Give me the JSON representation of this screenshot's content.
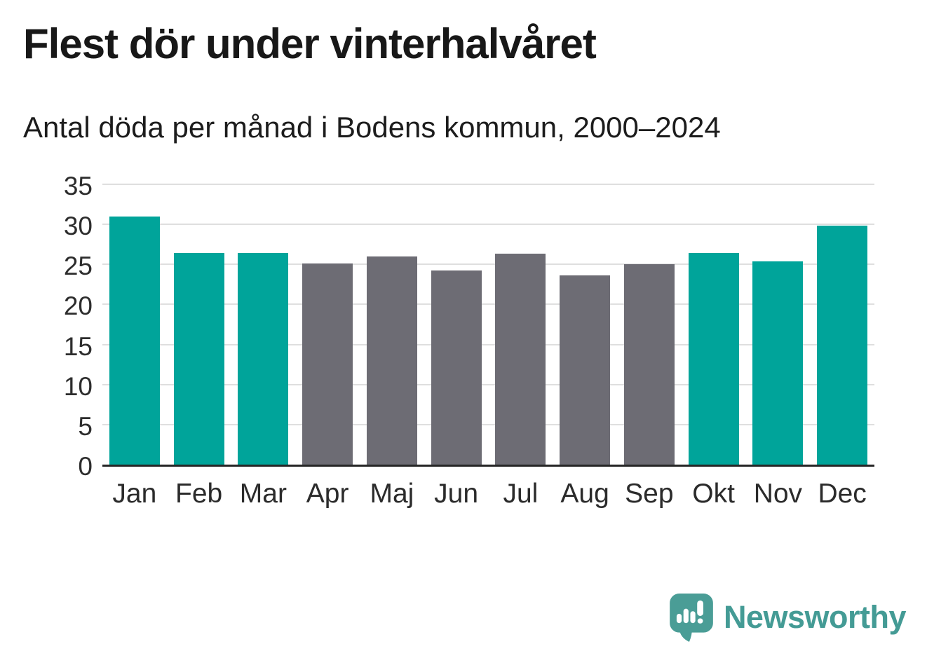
{
  "header": {
    "title": "Flest dör under vinterhalvåret",
    "subtitle": "Antal döda per månad i Bodens kommun, 2000–2024"
  },
  "chart_data": {
    "type": "bar",
    "title": "Flest dör under vinterhalvåret",
    "subtitle": "Antal döda per månad i Bodens kommun, 2000–2024",
    "categories": [
      "Jan",
      "Feb",
      "Mar",
      "Apr",
      "Maj",
      "Jun",
      "Jul",
      "Aug",
      "Sep",
      "Okt",
      "Nov",
      "Dec"
    ],
    "values": [
      31.0,
      26.4,
      26.4,
      25.1,
      26.0,
      24.2,
      26.3,
      23.6,
      25.0,
      26.4,
      25.4,
      29.8
    ],
    "highlighted": [
      true,
      true,
      true,
      false,
      false,
      false,
      false,
      false,
      false,
      true,
      true,
      true
    ],
    "y_ticks": [
      0,
      5,
      10,
      15,
      20,
      25,
      30,
      35
    ],
    "ylim": [
      0,
      35
    ],
    "xlabel": "",
    "ylabel": "",
    "grid": "horizontal",
    "legend": "none",
    "colors": {
      "highlight": "#00A49A",
      "default": "#6D6C74",
      "gridline": "#DFDFDF",
      "axis": "#262626",
      "tick_label": "#2D2D2D"
    }
  },
  "footer": {
    "brand": "Newsworthy",
    "brand_text_color": "#449B95",
    "logo_mark_color": "#4A9D96"
  }
}
